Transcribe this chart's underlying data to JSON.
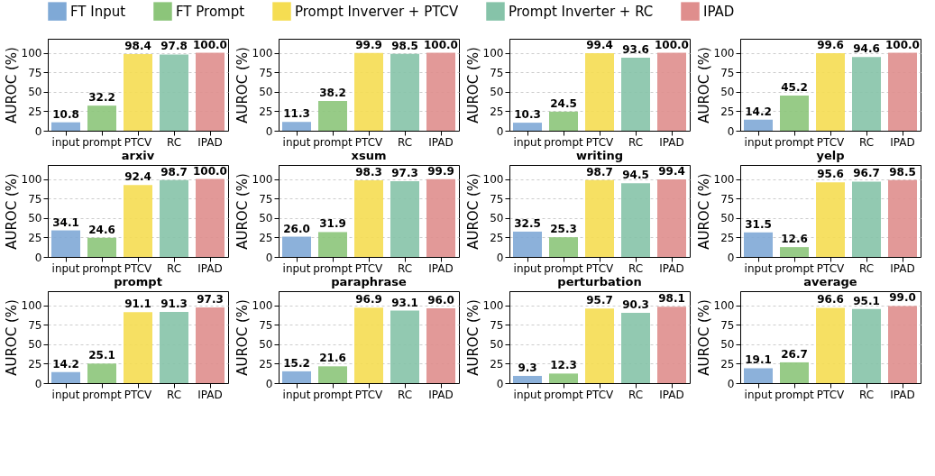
{
  "chart_data": [
    {
      "type": "bar",
      "categories": [
        "input",
        "prompt",
        "PTCV",
        "RC",
        "IPAD"
      ],
      "ylabel": "AUROC (%)",
      "ylim": [
        0,
        118
      ],
      "yticks": [
        0,
        25,
        50,
        75,
        100
      ],
      "grid": "y",
      "legend": "top",
      "series": [
        {
          "name": "FT Input",
          "color": "#7fa9d6",
          "values": [
            10.8,
            null,
            null,
            null,
            null
          ],
          "value_labels": [
            "10.8",
            null,
            null,
            null,
            null
          ]
        },
        {
          "name": "FT Prompt",
          "color": "#8cc57a",
          "values": [
            null,
            32.2,
            null,
            null,
            null
          ],
          "value_labels": [
            null,
            "32.2",
            null,
            null,
            null
          ]
        },
        {
          "name": "Prompt Inverver + PTCV",
          "color": "#f5dd52",
          "values": [
            null,
            null,
            98.4,
            null,
            null
          ],
          "value_labels": [
            null,
            null,
            "98.4",
            null,
            null
          ]
        },
        {
          "name": "Prompt Inverter + RC",
          "color": "#86c3a9",
          "values": [
            null,
            null,
            null,
            97.8,
            null
          ],
          "value_labels": [
            null,
            null,
            null,
            "97.8",
            null
          ]
        },
        {
          "name": "IPAD",
          "color": "#df8e8d",
          "values": [
            null,
            null,
            null,
            null,
            100
          ],
          "value_labels": [
            null,
            null,
            null,
            null,
            "100.0"
          ]
        }
      ]
    },
    {
      "type": "bar",
      "categories": [
        "input",
        "prompt",
        "PTCV",
        "RC",
        "IPAD"
      ],
      "ylabel": "AUROC (%)",
      "ylim": [
        0,
        118
      ],
      "yticks": [
        0,
        25,
        50,
        75,
        100
      ],
      "grid": "y",
      "series": [
        {
          "color": "#7fa9d6",
          "values": [
            11.3,
            null,
            null,
            null,
            null
          ],
          "value_labels": [
            "11.3",
            null,
            null,
            null,
            null
          ]
        },
        {
          "color": "#8cc57a",
          "values": [
            null,
            38.2,
            null,
            null,
            null
          ],
          "value_labels": [
            null,
            "38.2",
            null,
            null,
            null
          ]
        },
        {
          "color": "#f5dd52",
          "values": [
            null,
            null,
            99.9,
            null,
            null
          ],
          "value_labels": [
            null,
            null,
            "99.9",
            null,
            null
          ]
        },
        {
          "color": "#86c3a9",
          "values": [
            null,
            null,
            null,
            98.5,
            null
          ],
          "value_labels": [
            null,
            null,
            null,
            "98.5",
            null
          ]
        },
        {
          "color": "#df8e8d",
          "values": [
            null,
            null,
            null,
            null,
            100
          ],
          "value_labels": [
            null,
            null,
            null,
            null,
            "100.0"
          ]
        }
      ]
    },
    {
      "type": "bar",
      "categories": [
        "input",
        "prompt",
        "PTCV",
        "RC",
        "IPAD"
      ],
      "ylabel": "AUROC (%)",
      "ylim": [
        0,
        118
      ],
      "yticks": [
        0,
        25,
        50,
        75,
        100
      ],
      "grid": "y",
      "series": [
        {
          "color": "#7fa9d6",
          "values": [
            10.3,
            null,
            null,
            null,
            null
          ],
          "value_labels": [
            "10.3",
            null,
            null,
            null,
            null
          ]
        },
        {
          "color": "#8cc57a",
          "values": [
            null,
            24.5,
            null,
            null,
            null
          ],
          "value_labels": [
            null,
            "24.5",
            null,
            null,
            null
          ]
        },
        {
          "color": "#f5dd52",
          "values": [
            null,
            null,
            99.4,
            null,
            null
          ],
          "value_labels": [
            null,
            null,
            "99.4",
            null,
            null
          ]
        },
        {
          "color": "#86c3a9",
          "values": [
            null,
            null,
            null,
            93.6,
            null
          ],
          "value_labels": [
            null,
            null,
            null,
            "93.6",
            null
          ]
        },
        {
          "color": "#df8e8d",
          "values": [
            null,
            null,
            null,
            null,
            100
          ],
          "value_labels": [
            null,
            null,
            null,
            null,
            "100.0"
          ]
        }
      ]
    },
    {
      "type": "bar",
      "categories": [
        "input",
        "prompt",
        "PTCV",
        "RC",
        "IPAD"
      ],
      "ylabel": "AUROC (%)",
      "ylim": [
        0,
        118
      ],
      "yticks": [
        0,
        25,
        50,
        75,
        100
      ],
      "grid": "y",
      "series": [
        {
          "color": "#7fa9d6",
          "values": [
            14.2,
            null,
            null,
            null,
            null
          ],
          "value_labels": [
            "14.2",
            null,
            null,
            null,
            null
          ]
        },
        {
          "color": "#8cc57a",
          "values": [
            null,
            45.2,
            null,
            null,
            null
          ],
          "value_labels": [
            null,
            "45.2",
            null,
            null,
            null
          ]
        },
        {
          "color": "#f5dd52",
          "values": [
            null,
            null,
            99.6,
            null,
            null
          ],
          "value_labels": [
            null,
            null,
            "99.6",
            null,
            null
          ]
        },
        {
          "color": "#86c3a9",
          "values": [
            null,
            null,
            null,
            94.6,
            null
          ],
          "value_labels": [
            null,
            null,
            null,
            "94.6",
            null
          ]
        },
        {
          "color": "#df8e8d",
          "values": [
            null,
            null,
            null,
            null,
            100
          ],
          "value_labels": [
            null,
            null,
            null,
            null,
            "100.0"
          ]
        }
      ]
    },
    {
      "type": "bar",
      "title": "arxiv",
      "categories": [
        "input",
        "prompt",
        "PTCV",
        "RC",
        "IPAD"
      ],
      "ylabel": "AUROC (%)",
      "ylim": [
        0,
        118
      ],
      "yticks": [
        0,
        25,
        50,
        75,
        100
      ],
      "grid": "y",
      "series": [
        {
          "color": "#7fa9d6",
          "values": [
            34.1,
            null,
            null,
            null,
            null
          ],
          "value_labels": [
            "34.1",
            null,
            null,
            null,
            null
          ]
        },
        {
          "color": "#8cc57a",
          "values": [
            null,
            24.6,
            null,
            null,
            null
          ],
          "value_labels": [
            null,
            "24.6",
            null,
            null,
            null
          ]
        },
        {
          "color": "#f5dd52",
          "values": [
            null,
            null,
            92.4,
            null,
            null
          ],
          "value_labels": [
            null,
            null,
            "92.4",
            null,
            null
          ]
        },
        {
          "color": "#86c3a9",
          "values": [
            null,
            null,
            null,
            98.7,
            null
          ],
          "value_labels": [
            null,
            null,
            null,
            "98.7",
            null
          ]
        },
        {
          "color": "#df8e8d",
          "values": [
            null,
            null,
            null,
            null,
            100
          ],
          "value_labels": [
            null,
            null,
            null,
            null,
            "100.0"
          ]
        }
      ]
    },
    {
      "type": "bar",
      "title": "xsum",
      "categories": [
        "input",
        "prompt",
        "PTCV",
        "RC",
        "IPAD"
      ],
      "ylabel": "AUROC (%)",
      "ylim": [
        0,
        118
      ],
      "yticks": [
        0,
        25,
        50,
        75,
        100
      ],
      "grid": "y",
      "series": [
        {
          "color": "#7fa9d6",
          "values": [
            26,
            null,
            null,
            null,
            null
          ],
          "value_labels": [
            "26.0",
            null,
            null,
            null,
            null
          ]
        },
        {
          "color": "#8cc57a",
          "values": [
            null,
            31.9,
            null,
            null,
            null
          ],
          "value_labels": [
            null,
            "31.9",
            null,
            null,
            null
          ]
        },
        {
          "color": "#f5dd52",
          "values": [
            null,
            null,
            98.3,
            null,
            null
          ],
          "value_labels": [
            null,
            null,
            "98.3",
            null,
            null
          ]
        },
        {
          "color": "#86c3a9",
          "values": [
            null,
            null,
            null,
            97.3,
            null
          ],
          "value_labels": [
            null,
            null,
            null,
            "97.3",
            null
          ]
        },
        {
          "color": "#df8e8d",
          "values": [
            null,
            null,
            null,
            null,
            99.9
          ],
          "value_labels": [
            null,
            null,
            null,
            null,
            "99.9"
          ]
        }
      ]
    },
    {
      "type": "bar",
      "title": "writing",
      "categories": [
        "input",
        "prompt",
        "PTCV",
        "RC",
        "IPAD"
      ],
      "ylabel": "AUROC (%)",
      "ylim": [
        0,
        118
      ],
      "yticks": [
        0,
        25,
        50,
        75,
        100
      ],
      "grid": "y",
      "series": [
        {
          "color": "#7fa9d6",
          "values": [
            32.5,
            null,
            null,
            null,
            null
          ],
          "value_labels": [
            "32.5",
            null,
            null,
            null,
            null
          ]
        },
        {
          "color": "#8cc57a",
          "values": [
            null,
            25.3,
            null,
            null,
            null
          ],
          "value_labels": [
            null,
            "25.3",
            null,
            null,
            null
          ]
        },
        {
          "color": "#f5dd52",
          "values": [
            null,
            null,
            98.7,
            null,
            null
          ],
          "value_labels": [
            null,
            null,
            "98.7",
            null,
            null
          ]
        },
        {
          "color": "#86c3a9",
          "values": [
            null,
            null,
            null,
            94.5,
            null
          ],
          "value_labels": [
            null,
            null,
            null,
            "94.5",
            null
          ]
        },
        {
          "color": "#df8e8d",
          "values": [
            null,
            null,
            null,
            null,
            99.4
          ],
          "value_labels": [
            null,
            null,
            null,
            null,
            "99.4"
          ]
        }
      ]
    },
    {
      "type": "bar",
      "title": "yelp",
      "categories": [
        "input",
        "prompt",
        "PTCV",
        "RC",
        "IPAD"
      ],
      "ylabel": "AUROC (%)",
      "ylim": [
        0,
        118
      ],
      "yticks": [
        0,
        25,
        50,
        75,
        100
      ],
      "grid": "y",
      "series": [
        {
          "color": "#7fa9d6",
          "values": [
            31.5,
            null,
            null,
            null,
            null
          ],
          "value_labels": [
            "31.5",
            null,
            null,
            null,
            null
          ]
        },
        {
          "color": "#8cc57a",
          "values": [
            null,
            12.6,
            null,
            null,
            null
          ],
          "value_labels": [
            null,
            "12.6",
            null,
            null,
            null
          ]
        },
        {
          "color": "#f5dd52",
          "values": [
            null,
            null,
            95.6,
            null,
            null
          ],
          "value_labels": [
            null,
            null,
            "95.6",
            null,
            null
          ]
        },
        {
          "color": "#86c3a9",
          "values": [
            null,
            null,
            null,
            96.7,
            null
          ],
          "value_labels": [
            null,
            null,
            null,
            "96.7",
            null
          ]
        },
        {
          "color": "#df8e8d",
          "values": [
            null,
            null,
            null,
            null,
            98.5
          ],
          "value_labels": [
            null,
            null,
            null,
            null,
            "98.5"
          ]
        }
      ]
    },
    {
      "type": "bar",
      "title": "prompt",
      "categories": [
        "input",
        "prompt",
        "PTCV",
        "RC",
        "IPAD"
      ],
      "ylabel": "AUROC (%)",
      "ylim": [
        0,
        118
      ],
      "yticks": [
        0,
        25,
        50,
        75,
        100
      ],
      "grid": "y",
      "series": [
        {
          "color": "#7fa9d6",
          "values": [
            14.2,
            null,
            null,
            null,
            null
          ],
          "value_labels": [
            "14.2",
            null,
            null,
            null,
            null
          ]
        },
        {
          "color": "#8cc57a",
          "values": [
            null,
            25.1,
            null,
            null,
            null
          ],
          "value_labels": [
            null,
            "25.1",
            null,
            null,
            null
          ]
        },
        {
          "color": "#f5dd52",
          "values": [
            null,
            null,
            91.1,
            null,
            null
          ],
          "value_labels": [
            null,
            null,
            "91.1",
            null,
            null
          ]
        },
        {
          "color": "#86c3a9",
          "values": [
            null,
            null,
            null,
            91.3,
            null
          ],
          "value_labels": [
            null,
            null,
            null,
            "91.3",
            null
          ]
        },
        {
          "color": "#df8e8d",
          "values": [
            null,
            null,
            null,
            null,
            97.3
          ],
          "value_labels": [
            null,
            null,
            null,
            null,
            "97.3"
          ]
        }
      ]
    },
    {
      "type": "bar",
      "title": "paraphrase",
      "categories": [
        "input",
        "prompt",
        "PTCV",
        "RC",
        "IPAD"
      ],
      "ylabel": "AUROC (%)",
      "ylim": [
        0,
        118
      ],
      "yticks": [
        0,
        25,
        50,
        75,
        100
      ],
      "grid": "y",
      "series": [
        {
          "color": "#7fa9d6",
          "values": [
            15.2,
            null,
            null,
            null,
            null
          ],
          "value_labels": [
            "15.2",
            null,
            null,
            null,
            null
          ]
        },
        {
          "color": "#8cc57a",
          "values": [
            null,
            21.6,
            null,
            null,
            null
          ],
          "value_labels": [
            null,
            "21.6",
            null,
            null,
            null
          ]
        },
        {
          "color": "#f5dd52",
          "values": [
            null,
            null,
            96.9,
            null,
            null
          ],
          "value_labels": [
            null,
            null,
            "96.9",
            null,
            null
          ]
        },
        {
          "color": "#86c3a9",
          "values": [
            null,
            null,
            null,
            93.1,
            null
          ],
          "value_labels": [
            null,
            null,
            null,
            "93.1",
            null
          ]
        },
        {
          "color": "#df8e8d",
          "values": [
            null,
            null,
            null,
            null,
            96
          ],
          "value_labels": [
            null,
            null,
            null,
            null,
            "96.0"
          ]
        }
      ]
    },
    {
      "type": "bar",
      "title": "perturbation",
      "categories": [
        "input",
        "prompt",
        "PTCV",
        "RC",
        "IPAD"
      ],
      "ylabel": "AUROC (%)",
      "ylim": [
        0,
        118
      ],
      "yticks": [
        0,
        25,
        50,
        75,
        100
      ],
      "grid": "y",
      "series": [
        {
          "color": "#7fa9d6",
          "values": [
            9.3,
            null,
            null,
            null,
            null
          ],
          "value_labels": [
            "9.3",
            null,
            null,
            null,
            null
          ]
        },
        {
          "color": "#8cc57a",
          "values": [
            null,
            12.3,
            null,
            null,
            null
          ],
          "value_labels": [
            null,
            "12.3",
            null,
            null,
            null
          ]
        },
        {
          "color": "#f5dd52",
          "values": [
            null,
            null,
            95.7,
            null,
            null
          ],
          "value_labels": [
            null,
            null,
            "95.7",
            null,
            null
          ]
        },
        {
          "color": "#86c3a9",
          "values": [
            null,
            null,
            null,
            90.3,
            null
          ],
          "value_labels": [
            null,
            null,
            null,
            "90.3",
            null
          ]
        },
        {
          "color": "#df8e8d",
          "values": [
            null,
            null,
            null,
            null,
            98.1
          ],
          "value_labels": [
            null,
            null,
            null,
            null,
            "98.1"
          ]
        }
      ]
    },
    {
      "type": "bar",
      "title": "average",
      "categories": [
        "input",
        "prompt",
        "PTCV",
        "RC",
        "IPAD"
      ],
      "ylabel": "AUROC (%)",
      "ylim": [
        0,
        118
      ],
      "yticks": [
        0,
        25,
        50,
        75,
        100
      ],
      "grid": "y",
      "series": [
        {
          "color": "#7fa9d6",
          "values": [
            19.1,
            null,
            null,
            null,
            null
          ],
          "value_labels": [
            "19.1",
            null,
            null,
            null,
            null
          ]
        },
        {
          "color": "#8cc57a",
          "values": [
            null,
            26.7,
            null,
            null,
            null
          ],
          "value_labels": [
            null,
            "26.7",
            null,
            null,
            null
          ]
        },
        {
          "color": "#f5dd52",
          "values": [
            null,
            null,
            96.6,
            null,
            null
          ],
          "value_labels": [
            null,
            null,
            "96.6",
            null,
            null
          ]
        },
        {
          "color": "#86c3a9",
          "values": [
            null,
            null,
            null,
            95.1,
            null
          ],
          "value_labels": [
            null,
            null,
            null,
            "95.1",
            null
          ]
        },
        {
          "color": "#df8e8d",
          "values": [
            null,
            null,
            null,
            null,
            99
          ],
          "value_labels": [
            null,
            null,
            null,
            null,
            "99.0"
          ]
        }
      ]
    }
  ]
}
